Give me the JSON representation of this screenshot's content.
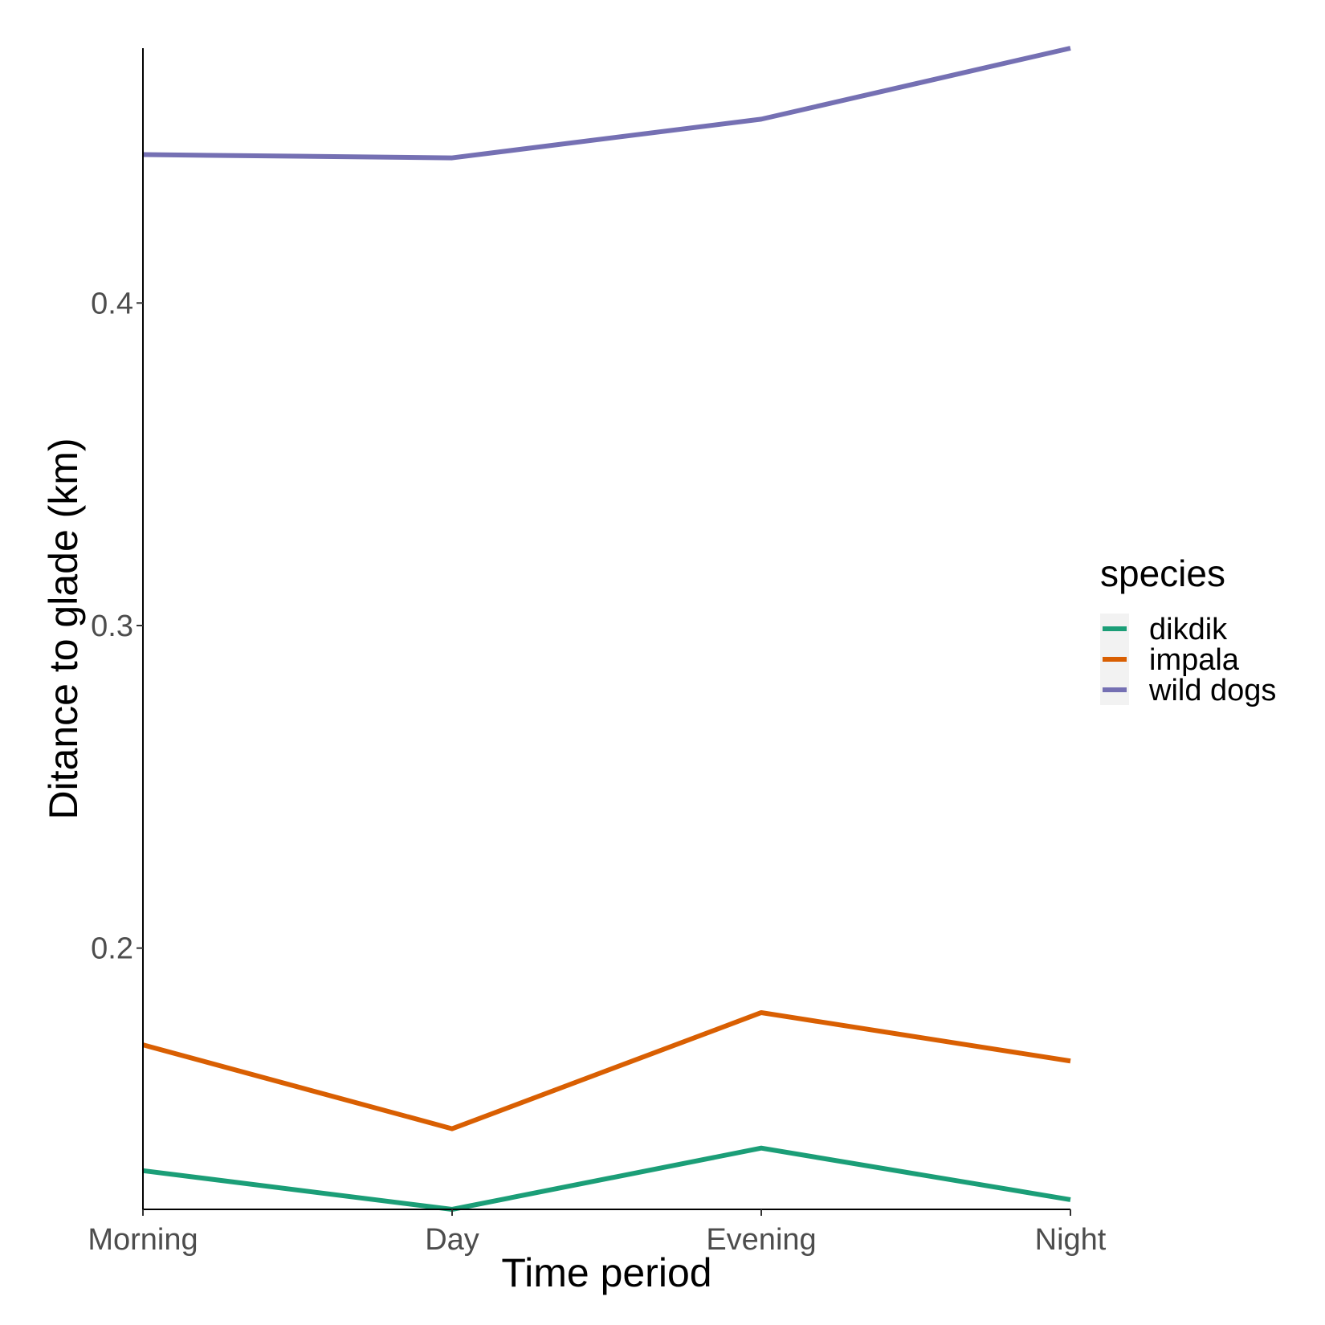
{
  "chart_data": {
    "type": "line",
    "xlabel": "Time period",
    "ylabel": "Ditance to glade (km)",
    "categories": [
      "Morning",
      "Day",
      "Evening",
      "Night"
    ],
    "y_ticks": [
      0.2,
      0.3,
      0.4
    ],
    "y_tick_labels": [
      "0.2",
      "0.3",
      "0.4"
    ],
    "ylim": [
      0.119,
      0.479
    ],
    "grid": false,
    "legend": {
      "title": "species",
      "position": "right"
    },
    "series": [
      {
        "name": "dikdik",
        "color": "#1b9e77",
        "values": [
          0.131,
          0.119,
          0.138,
          0.122
        ]
      },
      {
        "name": "impala",
        "color": "#d95f02",
        "values": [
          0.17,
          0.144,
          0.18,
          0.165
        ]
      },
      {
        "name": "wild dogs",
        "color": "#7570b3",
        "values": [
          0.446,
          0.445,
          0.457,
          0.479
        ]
      }
    ]
  }
}
